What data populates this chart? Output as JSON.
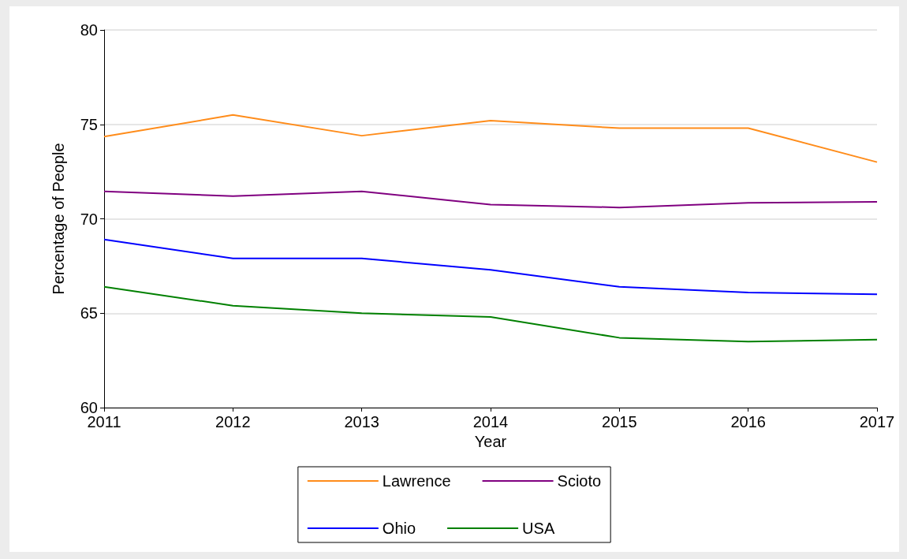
{
  "chart_data": {
    "type": "line",
    "xlabel": "Year",
    "ylabel": "Percentage of People",
    "x": [
      2011,
      2012,
      2013,
      2014,
      2015,
      2016,
      2017
    ],
    "series": [
      {
        "name": "Lawrence",
        "color": "#ff8c1a",
        "values": [
          74.35,
          75.5,
          74.4,
          75.2,
          74.8,
          74.8,
          73.0
        ]
      },
      {
        "name": "Scioto",
        "color": "#800080",
        "values": [
          71.45,
          71.2,
          71.45,
          70.75,
          70.6,
          70.85,
          70.9
        ]
      },
      {
        "name": "Ohio",
        "color": "#0000ff",
        "values": [
          68.9,
          67.9,
          67.9,
          67.3,
          66.4,
          66.1,
          66.0
        ]
      },
      {
        "name": "USA",
        "color": "#008000",
        "values": [
          66.4,
          65.4,
          65.0,
          64.8,
          63.7,
          63.5,
          63.6
        ]
      }
    ],
    "xlim": [
      2011,
      2017
    ],
    "xticks": [
      2011,
      2012,
      2013,
      2014,
      2015,
      2016,
      2017
    ],
    "ylim": [
      60,
      80
    ],
    "yticks": [
      60,
      65,
      70,
      75,
      80
    ],
    "grid": "y",
    "legend": "bottom",
    "marker": "none",
    "line_style": "solid"
  }
}
